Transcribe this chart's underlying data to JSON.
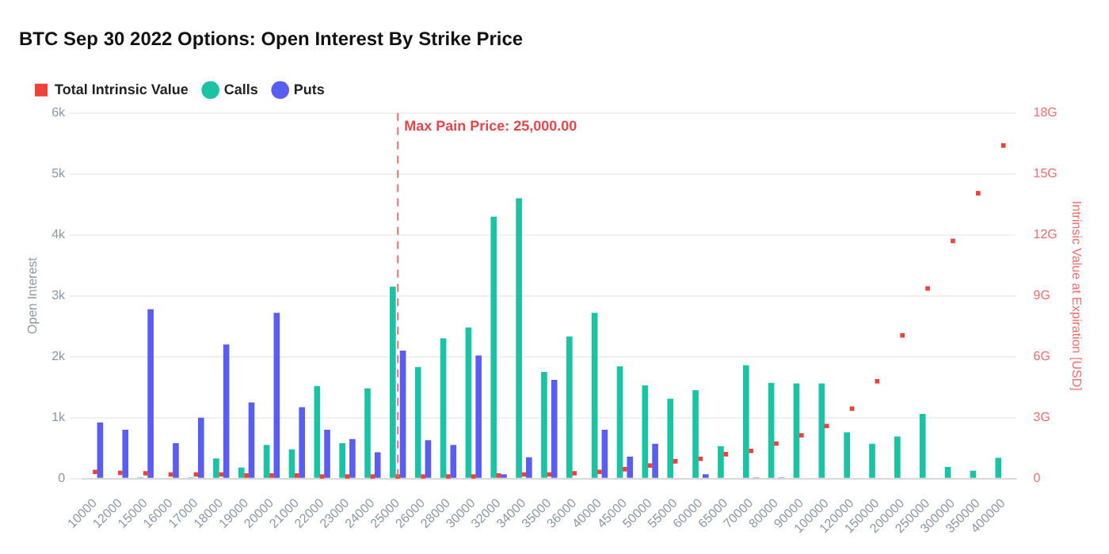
{
  "chart_data": {
    "type": "bar",
    "title": "BTC Sep 30 2022 Options: Open Interest By Strike Price",
    "ylabel": "Open Interest",
    "y2label": "Intrinsic Value at Expiration [USD]",
    "categories": [
      "10000",
      "12000",
      "15000",
      "16000",
      "17000",
      "18000",
      "19000",
      "20000",
      "21000",
      "22000",
      "23000",
      "24000",
      "25000",
      "26000",
      "28000",
      "30000",
      "32000",
      "34000",
      "35000",
      "36000",
      "40000",
      "45000",
      "50000",
      "55000",
      "60000",
      "65000",
      "70000",
      "80000",
      "90000",
      "100000",
      "120000",
      "150000",
      "200000",
      "250000",
      "300000",
      "350000",
      "400000"
    ],
    "series": [
      {
        "name": "Calls",
        "color": "#19c3a4",
        "values": [
          0,
          0,
          0.02,
          0,
          0.02,
          0.33,
          0.18,
          0.55,
          0.48,
          1.52,
          0.58,
          1.48,
          3.15,
          1.83,
          2.3,
          2.48,
          4.3,
          4.6,
          1.75,
          2.33,
          2.72,
          1.84,
          1.53,
          1.31,
          1.45,
          0.53,
          1.86,
          1.57,
          1.56,
          1.56,
          0.76,
          0.57,
          0.69,
          1.06,
          0.19,
          0.13,
          0.34
        ]
      },
      {
        "name": "Puts",
        "color": "#5a5ef0",
        "values": [
          0.92,
          0.8,
          2.78,
          0.58,
          1.0,
          2.2,
          1.25,
          2.72,
          1.17,
          0.8,
          0.65,
          0.43,
          2.1,
          0.63,
          0.55,
          2.02,
          0.07,
          0.35,
          1.62,
          0,
          0.8,
          0.36,
          0.57,
          0,
          0.07,
          0,
          0.02,
          0.02,
          0,
          0,
          0,
          0,
          0,
          0,
          0,
          0,
          0
        ]
      },
      {
        "name": "Total Intrinsic Value",
        "type": "scatter",
        "axis": "y2",
        "color": "#f0403a",
        "marker": "square",
        "x": [
          "10000",
          "12000",
          "15000",
          "16000",
          "17000",
          "18000",
          "19000",
          "20000",
          "21000",
          "22000",
          "23000",
          "24000",
          "25000",
          "26000",
          "28000",
          "30000",
          "32000",
          "34000",
          "35000",
          "36000",
          "40000",
          "45000",
          "50000",
          "55000",
          "60000",
          "65000",
          "70000",
          "80000",
          "90000",
          "100000",
          "120000",
          "150000",
          "200000",
          "250000",
          "300000",
          "350000",
          "400000"
        ],
        "values": [
          0.33,
          0.28,
          0.26,
          0.2,
          0.2,
          0.2,
          0.15,
          0.15,
          0.15,
          0.1,
          0.1,
          0.1,
          0.1,
          0.1,
          0.1,
          0.1,
          0.15,
          0.2,
          0.2,
          0.26,
          0.33,
          0.46,
          0.64,
          0.85,
          0.97,
          1.2,
          1.36,
          1.72,
          2.13,
          2.59,
          3.44,
          4.79,
          7.05,
          9.36,
          11.7,
          14.05,
          16.4
        ]
      }
    ],
    "ylim": [
      0,
      6
    ],
    "yticks": [
      0,
      {
        "value": 1,
        "label": "1k"
      },
      {
        "value": 2,
        "label": "2k"
      },
      {
        "value": 3,
        "label": "3k"
      },
      {
        "value": 4,
        "label": "4k"
      },
      {
        "value": 5,
        "label": "5k"
      },
      {
        "value": 6,
        "label": "6k"
      }
    ],
    "y2lim": [
      0,
      18
    ],
    "y2ticks": [
      0,
      {
        "value": 3,
        "label": "3G"
      },
      {
        "value": 6,
        "label": "6G"
      },
      {
        "value": 9,
        "label": "9G"
      },
      {
        "value": 12,
        "label": "12G"
      },
      {
        "value": 15,
        "label": "15G"
      },
      {
        "value": 18,
        "label": "18G"
      }
    ],
    "ref_lines": [
      {
        "axis": "x",
        "value": "25000",
        "label": "Max Pain Price: 25,000.00",
        "color": "#f07070",
        "line_style": "dashed"
      }
    ],
    "grid": "y",
    "legend": "top left"
  }
}
